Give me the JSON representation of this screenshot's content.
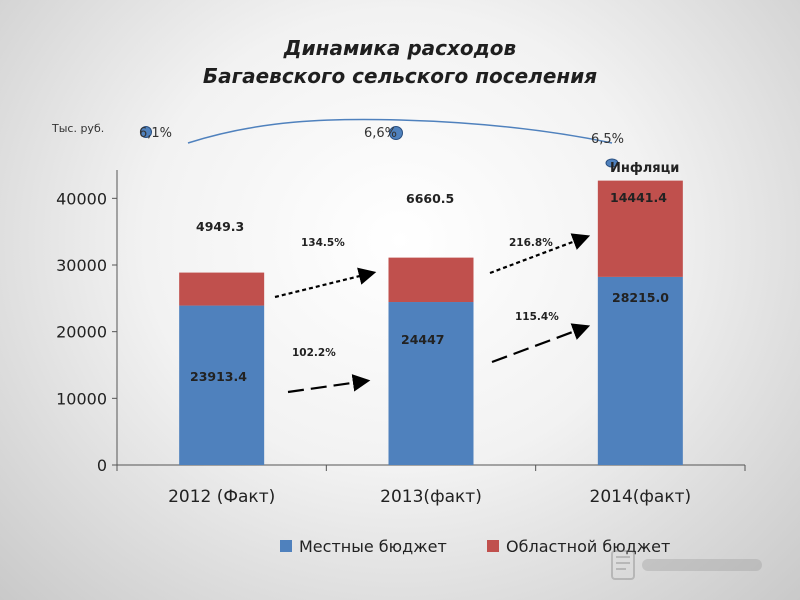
{
  "title": {
    "line1": "Динамика расходов",
    "line2": "Багаевского сельского поселения"
  },
  "chart_data": {
    "type": "bar",
    "stacked": true,
    "categories": [
      "2012 (Факт)",
      "2013(факт)",
      "2014(факт)"
    ],
    "series": [
      {
        "name": "Местные бюджет",
        "values": [
          23913.4,
          24447,
          28215.0
        ],
        "color": "#4f81bd"
      },
      {
        "name": "Областной бюджет",
        "values": [
          4949.3,
          6660.5,
          14441.4
        ],
        "color": "#c0504d"
      }
    ],
    "ylim": [
      0,
      45000
    ],
    "yticks": [
      0,
      10000,
      20000,
      30000,
      40000
    ],
    "ylabel": "Тыс. руб.",
    "value_labels": {
      "local": [
        "23913.4",
        "24447",
        "28215.0"
      ],
      "regional": [
        "4949.3",
        "6660.5",
        "14441.4"
      ]
    },
    "growth_labels": {
      "regional": [
        "134.5%",
        "216.8%"
      ],
      "local": [
        "102.2%",
        "115.4%"
      ]
    },
    "inflation": {
      "label": "Инфляци",
      "values": [
        "6,1%",
        "6,6%",
        "6,5%"
      ]
    },
    "legend": {
      "position": "bottom"
    },
    "grid": false
  }
}
